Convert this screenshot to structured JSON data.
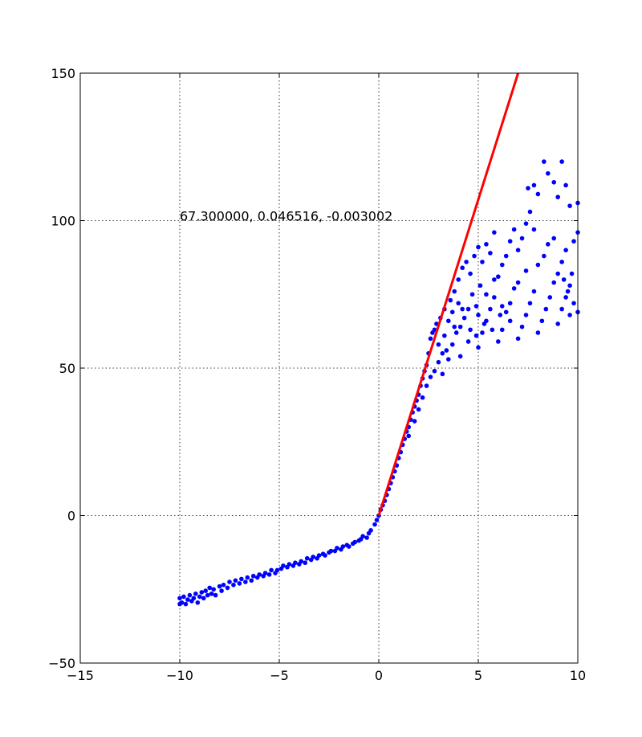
{
  "chart_data": {
    "type": "scatter",
    "title": "",
    "xlabel": "",
    "ylabel": "",
    "xlim": [
      -15,
      10
    ],
    "ylim": [
      -50,
      150
    ],
    "xticks": [
      -15,
      -10,
      -5,
      0,
      5,
      10
    ],
    "yticks": [
      -50,
      0,
      50,
      100,
      150
    ],
    "xtick_labels": [
      "−15",
      "−10",
      "−5",
      "0",
      "5",
      "10"
    ],
    "ytick_labels": [
      "−50",
      "0",
      "50",
      "100",
      "150"
    ],
    "grid": true,
    "annotation": {
      "text": "67.300000, 0.046516, -0.003002",
      "x": -10,
      "y": 100
    },
    "series": [
      {
        "kind": "scatter",
        "color": "#0000ff",
        "points": [
          [
            -10.0,
            -30.0
          ],
          [
            -10.0,
            -28.0
          ],
          [
            -9.9,
            -29.5
          ],
          [
            -9.8,
            -27.5
          ],
          [
            -9.7,
            -30.0
          ],
          [
            -9.6,
            -28.5
          ],
          [
            -9.5,
            -27.0
          ],
          [
            -9.4,
            -29.0
          ],
          [
            -9.3,
            -28.0
          ],
          [
            -9.2,
            -26.5
          ],
          [
            -9.1,
            -29.5
          ],
          [
            -9.0,
            -27.5
          ],
          [
            -8.9,
            -26.0
          ],
          [
            -8.8,
            -28.0
          ],
          [
            -8.7,
            -25.5
          ],
          [
            -8.6,
            -27.0
          ],
          [
            -8.5,
            -24.5
          ],
          [
            -8.4,
            -26.5
          ],
          [
            -8.3,
            -25.0
          ],
          [
            -8.2,
            -27.0
          ],
          [
            -8.0,
            -24.0
          ],
          [
            -7.9,
            -25.5
          ],
          [
            -7.8,
            -23.5
          ],
          [
            -7.6,
            -24.5
          ],
          [
            -7.5,
            -22.5
          ],
          [
            -7.3,
            -23.5
          ],
          [
            -7.2,
            -22.0
          ],
          [
            -7.0,
            -23.0
          ],
          [
            -6.9,
            -21.5
          ],
          [
            -6.7,
            -22.5
          ],
          [
            -6.6,
            -21.0
          ],
          [
            -6.4,
            -22.0
          ],
          [
            -6.3,
            -20.5
          ],
          [
            -6.1,
            -21.0
          ],
          [
            -6.0,
            -20.0
          ],
          [
            -5.8,
            -20.5
          ],
          [
            -5.7,
            -19.5
          ],
          [
            -5.5,
            -20.0
          ],
          [
            -5.4,
            -18.5
          ],
          [
            -5.2,
            -19.5
          ],
          [
            -5.1,
            -18.5
          ],
          [
            -4.9,
            -18.0
          ],
          [
            -4.8,
            -17.0
          ],
          [
            -4.6,
            -17.5
          ],
          [
            -4.5,
            -16.5
          ],
          [
            -4.3,
            -17.0
          ],
          [
            -4.2,
            -16.0
          ],
          [
            -4.0,
            -16.5
          ],
          [
            -3.9,
            -15.5
          ],
          [
            -3.7,
            -16.0
          ],
          [
            -3.6,
            -14.5
          ],
          [
            -3.4,
            -15.0
          ],
          [
            -3.3,
            -14.0
          ],
          [
            -3.1,
            -14.5
          ],
          [
            -3.0,
            -13.5
          ],
          [
            -2.8,
            -13.0
          ],
          [
            -2.7,
            -13.5
          ],
          [
            -2.5,
            -12.5
          ],
          [
            -2.4,
            -12.0
          ],
          [
            -2.2,
            -12.0
          ],
          [
            -2.1,
            -11.0
          ],
          [
            -1.9,
            -11.5
          ],
          [
            -1.8,
            -10.5
          ],
          [
            -1.6,
            -10.0
          ],
          [
            -1.5,
            -10.5
          ],
          [
            -1.3,
            -9.5
          ],
          [
            -1.2,
            -9.0
          ],
          [
            -1.0,
            -8.5
          ],
          [
            -0.9,
            -8.0
          ],
          [
            -0.8,
            -7.0
          ],
          [
            -0.6,
            -7.5
          ],
          [
            -0.5,
            -6.0
          ],
          [
            -0.4,
            -5.0
          ],
          [
            -0.2,
            -3.0
          ],
          [
            -0.1,
            -1.5
          ],
          [
            0.0,
            0.0
          ],
          [
            0.1,
            2.0
          ],
          [
            0.2,
            3.5
          ],
          [
            0.3,
            5.0
          ],
          [
            0.4,
            7.0
          ],
          [
            0.5,
            9.0
          ],
          [
            0.6,
            11.0
          ],
          [
            0.7,
            13.0
          ],
          [
            0.8,
            15.0
          ],
          [
            0.9,
            17.0
          ],
          [
            1.0,
            19.5
          ],
          [
            1.1,
            21.5
          ],
          [
            1.2,
            24.0
          ],
          [
            1.3,
            26.0
          ],
          [
            1.4,
            28.5
          ],
          [
            1.5,
            30.0
          ],
          [
            1.6,
            32.5
          ],
          [
            1.7,
            35.0
          ],
          [
            1.8,
            37.0
          ],
          [
            1.9,
            39.0
          ],
          [
            2.0,
            41.0
          ],
          [
            2.1,
            44.0
          ],
          [
            2.2,
            46.5
          ],
          [
            2.3,
            49.0
          ],
          [
            2.4,
            51.0
          ],
          [
            1.5,
            27.0
          ],
          [
            1.8,
            32.0
          ],
          [
            2.0,
            36.0
          ],
          [
            2.2,
            40.0
          ],
          [
            2.4,
            44.0
          ],
          [
            2.6,
            47.0
          ],
          [
            2.8,
            49.0
          ],
          [
            3.0,
            52.0
          ],
          [
            3.2,
            55.0
          ],
          [
            3.4,
            56.0
          ],
          [
            2.5,
            55.0
          ],
          [
            2.6,
            60.0
          ],
          [
            2.8,
            63.0
          ],
          [
            3.0,
            58.0
          ],
          [
            3.1,
            67.0
          ],
          [
            3.3,
            70.0
          ],
          [
            3.5,
            66.0
          ],
          [
            3.6,
            73.0
          ],
          [
            3.8,
            76.0
          ],
          [
            4.0,
            72.0
          ],
          [
            3.2,
            48.0
          ],
          [
            3.5,
            53.0
          ],
          [
            3.7,
            58.0
          ],
          [
            3.9,
            62.0
          ],
          [
            4.1,
            54.0
          ],
          [
            4.3,
            67.0
          ],
          [
            4.5,
            70.0
          ],
          [
            4.7,
            75.0
          ],
          [
            4.9,
            61.0
          ],
          [
            5.1,
            78.0
          ],
          [
            4.0,
            80.0
          ],
          [
            4.2,
            84.0
          ],
          [
            4.4,
            86.0
          ],
          [
            4.6,
            82.0
          ],
          [
            4.8,
            88.0
          ],
          [
            5.0,
            91.0
          ],
          [
            5.2,
            86.0
          ],
          [
            5.4,
            92.0
          ],
          [
            5.6,
            89.0
          ],
          [
            5.8,
            96.0
          ],
          [
            5.0,
            57.0
          ],
          [
            5.2,
            62.0
          ],
          [
            5.4,
            66.0
          ],
          [
            5.6,
            70.0
          ],
          [
            5.8,
            74.0
          ],
          [
            6.0,
            59.0
          ],
          [
            6.2,
            63.0
          ],
          [
            6.4,
            69.0
          ],
          [
            6.6,
            72.0
          ],
          [
            6.8,
            77.0
          ],
          [
            6.0,
            81.0
          ],
          [
            6.2,
            85.0
          ],
          [
            6.4,
            88.0
          ],
          [
            6.6,
            93.0
          ],
          [
            6.8,
            97.0
          ],
          [
            7.0,
            90.0
          ],
          [
            7.2,
            94.0
          ],
          [
            7.4,
            99.0
          ],
          [
            7.6,
            103.0
          ],
          [
            7.8,
            97.0
          ],
          [
            7.0,
            60.0
          ],
          [
            7.2,
            64.0
          ],
          [
            7.4,
            68.0
          ],
          [
            7.6,
            72.0
          ],
          [
            7.8,
            76.0
          ],
          [
            8.0,
            62.0
          ],
          [
            8.2,
            66.0
          ],
          [
            8.4,
            70.0
          ],
          [
            8.6,
            74.0
          ],
          [
            8.8,
            79.0
          ],
          [
            7.5,
            111.0
          ],
          [
            7.8,
            112.0
          ],
          [
            8.0,
            109.0
          ],
          [
            8.3,
            120.0
          ],
          [
            8.5,
            116.0
          ],
          [
            8.8,
            113.0
          ],
          [
            9.0,
            108.0
          ],
          [
            9.2,
            120.0
          ],
          [
            9.4,
            112.0
          ],
          [
            9.6,
            105.0
          ],
          [
            8.0,
            85.0
          ],
          [
            8.3,
            88.0
          ],
          [
            8.5,
            92.0
          ],
          [
            8.8,
            94.0
          ],
          [
            9.0,
            82.0
          ],
          [
            9.2,
            86.0
          ],
          [
            9.4,
            90.0
          ],
          [
            9.6,
            78.0
          ],
          [
            9.8,
            93.0
          ],
          [
            10.0,
            96.0
          ],
          [
            9.0,
            65.0
          ],
          [
            9.2,
            70.0
          ],
          [
            9.4,
            74.0
          ],
          [
            9.6,
            68.0
          ],
          [
            9.8,
            72.0
          ],
          [
            10.0,
            69.0
          ],
          [
            9.3,
            80.0
          ],
          [
            9.5,
            76.0
          ],
          [
            9.7,
            82.0
          ],
          [
            10.0,
            106.0
          ],
          [
            3.8,
            64.0
          ],
          [
            4.2,
            70.0
          ],
          [
            4.6,
            63.0
          ],
          [
            5.0,
            68.0
          ],
          [
            5.4,
            75.0
          ],
          [
            5.8,
            80.0
          ],
          [
            6.2,
            71.0
          ],
          [
            6.6,
            66.0
          ],
          [
            7.0,
            79.0
          ],
          [
            7.4,
            83.0
          ],
          [
            2.7,
            62.0
          ],
          [
            2.9,
            65.0
          ],
          [
            3.3,
            61.0
          ],
          [
            3.7,
            69.0
          ],
          [
            4.1,
            64.0
          ],
          [
            4.5,
            59.0
          ],
          [
            4.9,
            71.0
          ],
          [
            5.3,
            65.0
          ],
          [
            5.7,
            63.0
          ],
          [
            6.1,
            68.0
          ]
        ]
      },
      {
        "kind": "line",
        "color": "#ff0000",
        "points": [
          [
            0.0,
            0.0
          ],
          [
            7.0,
            150.0
          ]
        ]
      }
    ]
  }
}
